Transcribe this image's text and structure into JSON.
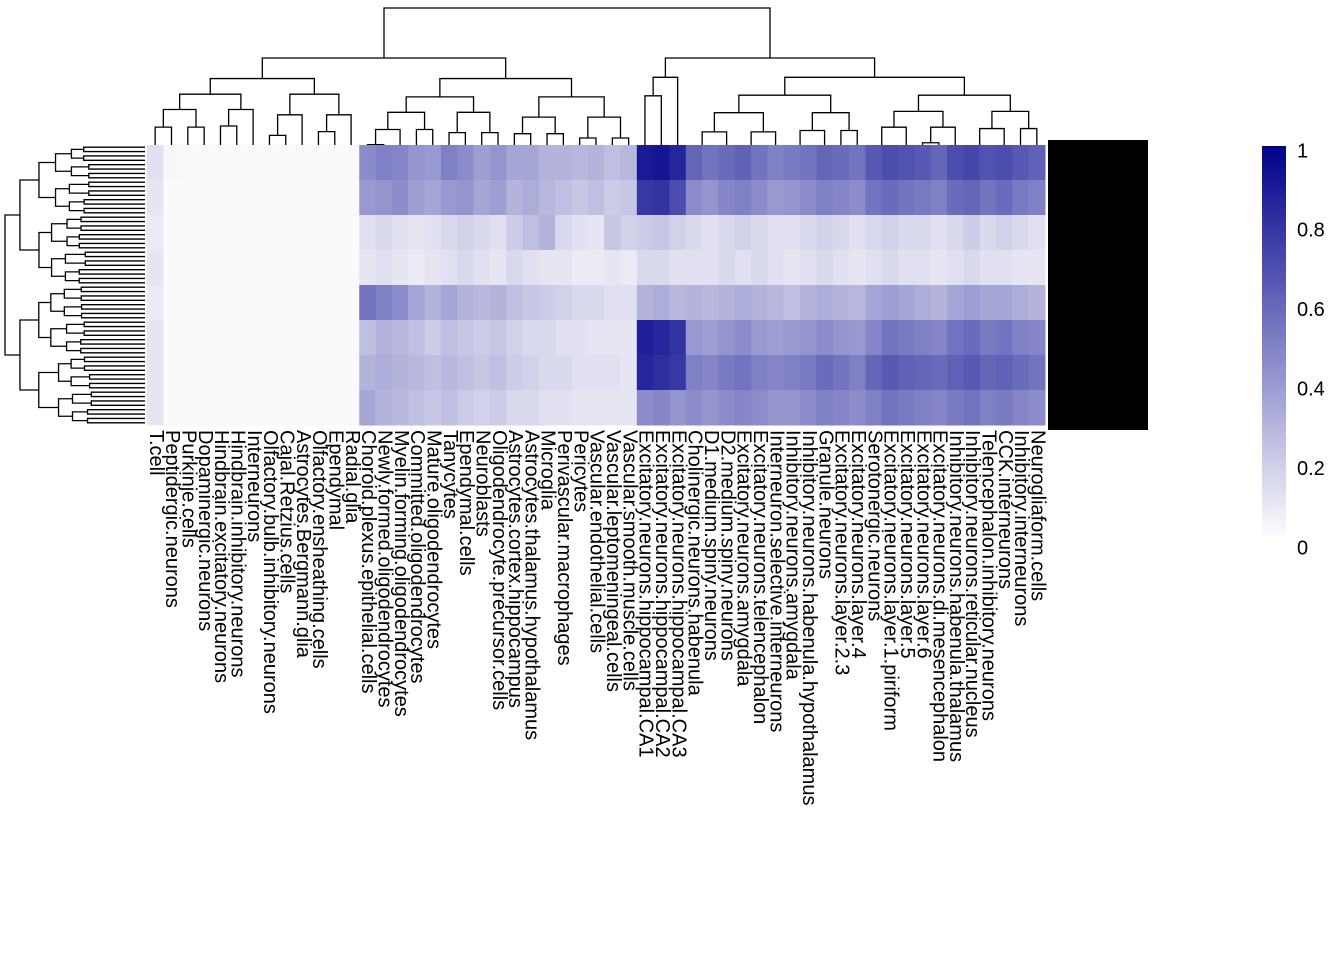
{
  "chart_data": {
    "type": "heatmap",
    "columns": [
      "T.cell",
      "Peptidergic.neurons",
      "Purkinje.cells",
      "Dopaminergic.neurons",
      "Hindbrain.excitatory.neurons",
      "Hindbrain.inhibitory.neurons",
      "Interneurons",
      "Olfactory.bulb.inhibitory.neurons",
      "Cajal.Retzius.cells",
      "Astrocytes.Bergmann.glia",
      "Olfactory.ensheathing.cells",
      "Ependymal",
      "Radial.glia",
      "Choroid.plexus.epithelial.cells",
      "Newly.formed.oligodendrocytes",
      "Myelin.forming.oligodendrocytes",
      "Committed.oligodendrocytes",
      "Mature.oligodendrocytes",
      "Tanycytes",
      "Ependymal.cells",
      "Neuroblasts",
      "Oligodendrocyte.precursor.cells",
      "Astrocytes.cortex.hippocampus",
      "Astrocytes.thalamus.hypothalamus",
      "Microglia",
      "Perivascular.macrophages",
      "Pericytes",
      "Vascular.endothelial.cells",
      "Vascular.leptomeningeal.cells",
      "Vascular.smooth.muscle.cells",
      "Excitatory.neurons.hippocampal.CA1",
      "Excitatory.neurons.hippocampal.CA2",
      "Excitatory.neurons.hippocampal.CA3",
      "Cholinergic.neurons.habenula",
      "D1.medium.spiny.neurons",
      "D2.medium.spiny.neurons",
      "Excitatory.neurons.amygdala",
      "Excitatory.neurons.telencephalon",
      "Interneuron.selective.interneurons",
      "Inhibitory.neurons.amygdala",
      "Inhibitory.neurons.habenula.hypothalamus",
      "Granule.neurons",
      "Excitatory.neurons.layer.2.3",
      "Excitatory.neurons.layer.4",
      "Serotonergic.neurons",
      "Excitatory.neurons.layer.1.piriform",
      "Excitatory.neurons.layer.5",
      "Excitatory.neurons.layer.6",
      "Excitatory.neurons.di.mesencephalon",
      "Inhibitory.neurons.habenula.thalamus",
      "Inhibitory.neurons.reticular.nucleus",
      "Telencephalon.inhibitory.neurons",
      "CCK.interneurons",
      "Inhibitory.interneurons",
      "Neurogliaform.cells"
    ],
    "values": [
      [
        0.12,
        0.03,
        0.02,
        0.02,
        0.02,
        0.02,
        0.02,
        0.02,
        0.02,
        0.02,
        0.02,
        0.02,
        0.02,
        0.45,
        0.5,
        0.48,
        0.42,
        0.4,
        0.5,
        0.45,
        0.38,
        0.42,
        0.35,
        0.35,
        0.3,
        0.3,
        0.28,
        0.3,
        0.25,
        0.28,
        0.9,
        0.92,
        0.85,
        0.6,
        0.55,
        0.58,
        0.62,
        0.55,
        0.5,
        0.52,
        0.55,
        0.6,
        0.58,
        0.55,
        0.65,
        0.7,
        0.68,
        0.65,
        0.6,
        0.7,
        0.72,
        0.68,
        0.7,
        0.65,
        0.62
      ],
      [
        0.1,
        0.02,
        0.02,
        0.02,
        0.02,
        0.02,
        0.02,
        0.02,
        0.02,
        0.02,
        0.02,
        0.02,
        0.02,
        0.4,
        0.42,
        0.45,
        0.38,
        0.35,
        0.4,
        0.42,
        0.35,
        0.38,
        0.3,
        0.32,
        0.28,
        0.25,
        0.22,
        0.25,
        0.2,
        0.22,
        0.78,
        0.8,
        0.7,
        0.45,
        0.42,
        0.48,
        0.5,
        0.45,
        0.4,
        0.42,
        0.45,
        0.5,
        0.48,
        0.45,
        0.55,
        0.58,
        0.55,
        0.52,
        0.5,
        0.58,
        0.6,
        0.55,
        0.58,
        0.52,
        0.5
      ],
      [
        0.08,
        0.02,
        0.02,
        0.02,
        0.02,
        0.02,
        0.02,
        0.02,
        0.02,
        0.02,
        0.02,
        0.02,
        0.02,
        0.12,
        0.15,
        0.12,
        0.1,
        0.12,
        0.15,
        0.18,
        0.15,
        0.12,
        0.2,
        0.25,
        0.3,
        0.15,
        0.12,
        0.1,
        0.22,
        0.18,
        0.2,
        0.22,
        0.18,
        0.15,
        0.12,
        0.15,
        0.18,
        0.15,
        0.12,
        0.12,
        0.15,
        0.18,
        0.15,
        0.12,
        0.15,
        0.18,
        0.15,
        0.15,
        0.12,
        0.15,
        0.2,
        0.15,
        0.18,
        0.15,
        0.12
      ],
      [
        0.1,
        0.02,
        0.02,
        0.02,
        0.02,
        0.02,
        0.02,
        0.02,
        0.02,
        0.02,
        0.02,
        0.02,
        0.02,
        0.1,
        0.12,
        0.1,
        0.08,
        0.1,
        0.12,
        0.15,
        0.12,
        0.1,
        0.15,
        0.12,
        0.1,
        0.1,
        0.08,
        0.08,
        0.1,
        0.08,
        0.15,
        0.15,
        0.12,
        0.12,
        0.12,
        0.15,
        0.12,
        0.15,
        0.12,
        0.1,
        0.12,
        0.15,
        0.12,
        0.1,
        0.12,
        0.15,
        0.12,
        0.12,
        0.1,
        0.12,
        0.15,
        0.12,
        0.12,
        0.1,
        0.1
      ],
      [
        0.08,
        0.02,
        0.02,
        0.02,
        0.02,
        0.02,
        0.02,
        0.02,
        0.02,
        0.02,
        0.02,
        0.02,
        0.02,
        0.55,
        0.5,
        0.45,
        0.35,
        0.3,
        0.35,
        0.3,
        0.28,
        0.3,
        0.25,
        0.22,
        0.2,
        0.18,
        0.15,
        0.15,
        0.12,
        0.12,
        0.3,
        0.32,
        0.28,
        0.3,
        0.28,
        0.3,
        0.32,
        0.3,
        0.28,
        0.25,
        0.3,
        0.32,
        0.3,
        0.28,
        0.35,
        0.38,
        0.35,
        0.32,
        0.3,
        0.35,
        0.38,
        0.35,
        0.35,
        0.32,
        0.3
      ],
      [
        0.1,
        0.02,
        0.02,
        0.02,
        0.02,
        0.02,
        0.02,
        0.02,
        0.02,
        0.02,
        0.02,
        0.02,
        0.02,
        0.25,
        0.3,
        0.28,
        0.25,
        0.2,
        0.25,
        0.22,
        0.2,
        0.22,
        0.18,
        0.15,
        0.15,
        0.12,
        0.12,
        0.1,
        0.1,
        0.1,
        0.88,
        0.85,
        0.8,
        0.4,
        0.38,
        0.42,
        0.45,
        0.4,
        0.38,
        0.4,
        0.42,
        0.45,
        0.42,
        0.4,
        0.48,
        0.55,
        0.52,
        0.5,
        0.48,
        0.55,
        0.58,
        0.52,
        0.55,
        0.5,
        0.48
      ],
      [
        0.1,
        0.02,
        0.02,
        0.02,
        0.02,
        0.02,
        0.02,
        0.02,
        0.02,
        0.02,
        0.02,
        0.02,
        0.02,
        0.3,
        0.32,
        0.3,
        0.28,
        0.25,
        0.28,
        0.25,
        0.22,
        0.25,
        0.2,
        0.18,
        0.15,
        0.15,
        0.12,
        0.12,
        0.12,
        0.1,
        0.85,
        0.82,
        0.78,
        0.5,
        0.48,
        0.52,
        0.55,
        0.5,
        0.48,
        0.5,
        0.52,
        0.58,
        0.55,
        0.5,
        0.6,
        0.65,
        0.62,
        0.6,
        0.58,
        0.62,
        0.65,
        0.6,
        0.62,
        0.58,
        0.55
      ],
      [
        0.1,
        0.02,
        0.02,
        0.02,
        0.02,
        0.02,
        0.02,
        0.02,
        0.02,
        0.02,
        0.02,
        0.02,
        0.02,
        0.35,
        0.3,
        0.28,
        0.25,
        0.22,
        0.25,
        0.2,
        0.18,
        0.2,
        0.15,
        0.15,
        0.12,
        0.12,
        0.1,
        0.1,
        0.1,
        0.1,
        0.45,
        0.48,
        0.42,
        0.45,
        0.42,
        0.45,
        0.48,
        0.45,
        0.42,
        0.42,
        0.45,
        0.5,
        0.48,
        0.45,
        0.5,
        0.55,
        0.52,
        0.5,
        0.48,
        0.52,
        0.55,
        0.5,
        0.52,
        0.48,
        0.45
      ]
    ],
    "zlim": [
      0,
      1
    ],
    "colors": [
      "#ffffff",
      "#00008b"
    ],
    "colorbar_ticks": [
      0,
      0.2,
      0.4,
      0.6,
      0.8,
      1
    ]
  }
}
